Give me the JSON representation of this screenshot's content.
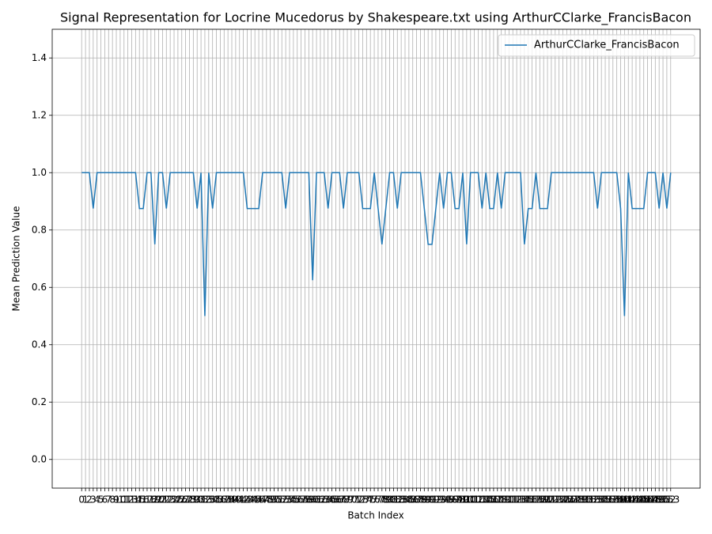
{
  "chart_data": {
    "type": "line",
    "title": "Signal Representation for Locrine Mucedorus by Shakespeare.txt using ArthurCClarke_FrancisBacon",
    "x_label": "Batch Index",
    "y_label": "Mean Prediction Value",
    "x": [
      0,
      1,
      2,
      3,
      4,
      5,
      6,
      7,
      8,
      9,
      10,
      11,
      12,
      13,
      14,
      15,
      16,
      17,
      18,
      19,
      20,
      21,
      22,
      23,
      24,
      25,
      26,
      27,
      28,
      29,
      30,
      31,
      32,
      33,
      34,
      35,
      36,
      37,
      38,
      39,
      40,
      41,
      42,
      43,
      44,
      45,
      46,
      47,
      48,
      49,
      50,
      51,
      52,
      53,
      54,
      55,
      56,
      57,
      58,
      59,
      60,
      61,
      62,
      63,
      64,
      65,
      66,
      67,
      68,
      69,
      70,
      71,
      72,
      73,
      74,
      75,
      76,
      77,
      78,
      79,
      80,
      81,
      82,
      83,
      84,
      85,
      86,
      87,
      88,
      89,
      90,
      91,
      92,
      93,
      94,
      95,
      96,
      97,
      98,
      99,
      100,
      101,
      102,
      103,
      104,
      105,
      106,
      107,
      108,
      109,
      110,
      111,
      112,
      113,
      114,
      115,
      116,
      117,
      118,
      119,
      120,
      121,
      122,
      123,
      124,
      125,
      126,
      127,
      128,
      129,
      130,
      131,
      132,
      133,
      134,
      135,
      136,
      137,
      138,
      139,
      140,
      141,
      142,
      143,
      144,
      145,
      146,
      147,
      148,
      149,
      150,
      151,
      152,
      153
    ],
    "series": [
      {
        "name": "ArthurCClarke_FrancisBacon",
        "color": "#1f77b4",
        "values": [
          1,
          1,
          1,
          0.875,
          1,
          1,
          1,
          1,
          1,
          1,
          1,
          1,
          1,
          1,
          1,
          0.875,
          0.875,
          1,
          1,
          0.75,
          1,
          1,
          0.875,
          1,
          1,
          1,
          1,
          1,
          1,
          1,
          0.875,
          1,
          0.5,
          1,
          0.875,
          1,
          1,
          1,
          1,
          1,
          1,
          1,
          1,
          0.875,
          0.875,
          0.875,
          0.875,
          1,
          1,
          1,
          1,
          1,
          1,
          0.875,
          1,
          1,
          1,
          1,
          1,
          1,
          0.625,
          1,
          1,
          1,
          0.875,
          1,
          1,
          1,
          0.875,
          1,
          1,
          1,
          1,
          0.875,
          0.875,
          0.875,
          1,
          0.875,
          0.75,
          0.875,
          1,
          1,
          0.875,
          1,
          1,
          1,
          1,
          1,
          1,
          0.875,
          0.75,
          0.75,
          0.875,
          1,
          0.875,
          1,
          1,
          0.875,
          0.875,
          1,
          0.75,
          1,
          1,
          1,
          0.875,
          1,
          0.875,
          0.875,
          1,
          0.875,
          1,
          1,
          1,
          1,
          1,
          0.75,
          0.875,
          0.875,
          1,
          0.875,
          0.875,
          0.875,
          1,
          1,
          1,
          1,
          1,
          1,
          1,
          1,
          1,
          1,
          1,
          1,
          0.875,
          1,
          1,
          1,
          1,
          1,
          0.875,
          0.5,
          1,
          0.875,
          0.875,
          0.875,
          0.875,
          1,
          1,
          1,
          0.875,
          1,
          0.875,
          1
        ]
      }
    ],
    "xlim": [
      -7.65,
      160.65
    ],
    "xticks": [
      0,
      1,
      2,
      3,
      4,
      5,
      6,
      7,
      8,
      9,
      10,
      11,
      12,
      13,
      14,
      15,
      16,
      17,
      18,
      19,
      20,
      21,
      22,
      23,
      24,
      25,
      26,
      27,
      28,
      29,
      30,
      31,
      32,
      33,
      34,
      35,
      36,
      37,
      38,
      39,
      40,
      41,
      42,
      43,
      44,
      45,
      46,
      47,
      48,
      49,
      50,
      51,
      52,
      53,
      54,
      55,
      56,
      57,
      58,
      59,
      60,
      61,
      62,
      63,
      64,
      65,
      66,
      67,
      68,
      69,
      70,
      71,
      72,
      73,
      74,
      75,
      76,
      77,
      78,
      79,
      80,
      81,
      82,
      83,
      84,
      85,
      86,
      87,
      88,
      89,
      90,
      91,
      92,
      93,
      94,
      95,
      96,
      97,
      98,
      99,
      100,
      101,
      102,
      103,
      104,
      105,
      106,
      107,
      108,
      109,
      110,
      111,
      112,
      113,
      114,
      115,
      116,
      117,
      118,
      119,
      120,
      121,
      122,
      123,
      124,
      125,
      126,
      127,
      128,
      129,
      130,
      131,
      132,
      133,
      134,
      135,
      136,
      137,
      138,
      139,
      140,
      141,
      142,
      143,
      144,
      145,
      146,
      147,
      148,
      149,
      150,
      151,
      152,
      153
    ],
    "ylim": [
      -0.1,
      1.5
    ],
    "yticks": [
      {
        "value": 0,
        "label": "0.0"
      },
      0.2,
      0.4,
      0.6,
      0.8,
      {
        "value": 1,
        "label": "1.0"
      },
      1.2,
      1.4
    ],
    "grid": true,
    "legend": "upper right"
  }
}
